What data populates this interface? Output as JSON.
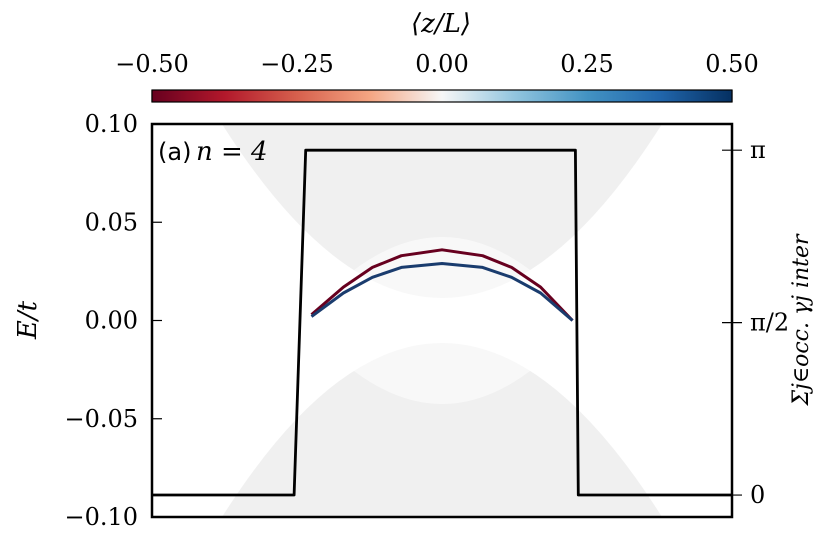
{
  "chart_data": {
    "type": "line",
    "panel_label": "(a)",
    "panel_annotation": "n = 4",
    "colorbar": {
      "label": "⟨z/L⟩",
      "range": [
        -0.5,
        0.5
      ],
      "ticks": [
        "−0.50",
        "−0.25",
        "0.00",
        "0.25",
        "0.50"
      ],
      "tick_values": [
        -0.5,
        -0.25,
        0.0,
        0.25,
        0.5
      ],
      "colormap": "RdBu"
    },
    "xlim": [
      0,
      1
    ],
    "ylim": [
      -0.1,
      0.1
    ],
    "ylabel": "E/t",
    "yticks": [
      "0.10",
      "0.05",
      "0.00",
      "−0.05",
      "−0.10"
    ],
    "ytick_values": [
      0.1,
      0.05,
      0.0,
      -0.05,
      -0.1
    ],
    "y2label": "Σj∈occ. γj inter",
    "y2ticks": [
      "π",
      "π/2",
      "0"
    ],
    "y2tick_values": [
      3.14159,
      1.5708,
      0
    ],
    "y2lim": [
      -0.2,
      3.38
    ],
    "series": [
      {
        "color": "#67001f",
        "x": [
          0.275,
          0.33,
          0.38,
          0.43,
          0.5,
          0.57,
          0.62,
          0.67,
          0.725
        ],
        "y": [
          0.003,
          0.017,
          0.027,
          0.033,
          0.036,
          0.033,
          0.027,
          0.017,
          0.0
        ]
      },
      {
        "color": "#1a3c6e",
        "x": [
          0.275,
          0.33,
          0.38,
          0.43,
          0.5,
          0.57,
          0.62,
          0.67,
          0.725
        ],
        "y": [
          0.002,
          0.014,
          0.022,
          0.027,
          0.029,
          0.027,
          0.022,
          0.014,
          0.0
        ]
      },
      {
        "color": "#000000",
        "axis": "right",
        "x": [
          0.0,
          0.245,
          0.245,
          0.265,
          0.265,
          0.73,
          0.73,
          0.735,
          0.735,
          1.0
        ],
        "y": [
          0.0,
          0.0,
          0.0,
          3.14159,
          3.14159,
          3.14159,
          3.14159,
          0.0,
          0.0,
          0.0
        ]
      }
    ],
    "background_band": {
      "color": "#ececec",
      "description": "bulk band continuum"
    }
  },
  "colors": {
    "axis": "#000000",
    "band_fill": "#ebebeb",
    "cbar_low": "#67001f",
    "cbar_mid": "#f7f7f7",
    "cbar_high": "#053061"
  }
}
